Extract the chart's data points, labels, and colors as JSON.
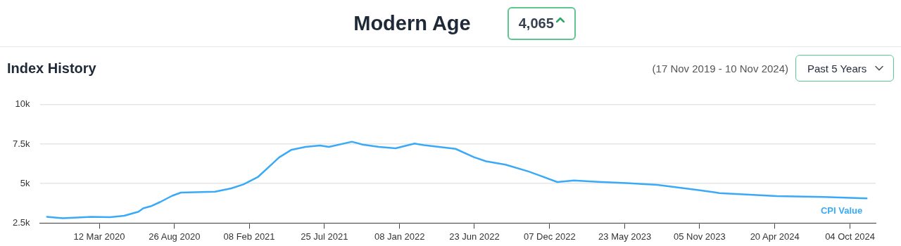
{
  "chart_data": {
    "type": "line",
    "title": "Modern Age",
    "subtitle": "Index History",
    "annotations": [
      "4,065",
      "(17 Nov 2019 - 10 Nov 2024)",
      "Past 5 Years"
    ],
    "x": [
      "2019-11-17",
      "2019-12-22",
      "2020-02-24",
      "2020-04-05",
      "2020-05-06",
      "2020-06-07",
      "2020-06-18",
      "2020-07-04",
      "2020-07-25",
      "2020-08-21",
      "2020-09-09",
      "2020-11-24",
      "2020-12-30",
      "2021-01-26",
      "2021-02-27",
      "2021-03-31",
      "2021-04-15",
      "2021-05-12",
      "2021-06-13",
      "2021-07-15",
      "2021-08-04",
      "2021-09-24",
      "2021-10-18",
      "2021-11-23",
      "2021-12-30",
      "2022-02-10",
      "2022-03-03",
      "2022-05-12",
      "2022-06-22",
      "2022-07-19",
      "2022-08-31",
      "2022-10-22",
      "2022-12-24",
      "2023-01-30",
      "2023-03-25",
      "2023-05-27",
      "2023-08-03",
      "2023-11-06",
      "2023-12-19",
      "2024-04-24",
      "2024-08-07",
      "2024-11-10"
    ],
    "series": [
      {
        "name": "CPI Value",
        "color": "#3aaaf8",
        "values": [
          2900,
          2810,
          2900,
          2870,
          2960,
          3220,
          3440,
          3560,
          3830,
          4230,
          4430,
          4490,
          4700,
          4950,
          5410,
          6250,
          6650,
          7130,
          7320,
          7410,
          7320,
          7650,
          7470,
          7320,
          7230,
          7530,
          7430,
          7200,
          6670,
          6410,
          6200,
          5760,
          5100,
          5200,
          5110,
          5030,
          4920,
          4580,
          4400,
          4210,
          4150,
          4065
        ]
      }
    ],
    "xlim": [
      "2019-11-01",
      "2024-11-30"
    ],
    "xticks": [
      {
        "value": "2020-03-12",
        "label": "12 Mar 2020"
      },
      {
        "value": "2020-08-26",
        "label": "26 Aug 2020"
      },
      {
        "value": "2021-02-08",
        "label": "08 Feb 2021"
      },
      {
        "value": "2021-07-25",
        "label": "25 Jul 2021"
      },
      {
        "value": "2022-01-08",
        "label": "08 Jan 2022"
      },
      {
        "value": "2022-06-23",
        "label": "23 Jun 2022"
      },
      {
        "value": "2022-12-07",
        "label": "07 Dec 2022"
      },
      {
        "value": "2023-05-23",
        "label": "23 May 2023"
      },
      {
        "value": "2023-11-05",
        "label": "05 Nov 2023"
      },
      {
        "value": "2024-04-20",
        "label": "20 Apr 2024"
      },
      {
        "value": "2024-10-04",
        "label": "04 Oct 2024"
      }
    ],
    "ylim": [
      2500,
      10000
    ],
    "yticks": [
      {
        "value": 2500,
        "label": "2.5k"
      },
      {
        "value": 5000,
        "label": "5k"
      },
      {
        "value": 7500,
        "label": "7.5k"
      },
      {
        "value": 10000,
        "label": "10k"
      }
    ],
    "grid": "y",
    "legend": false,
    "marker": "none",
    "line_style": "solid"
  }
}
